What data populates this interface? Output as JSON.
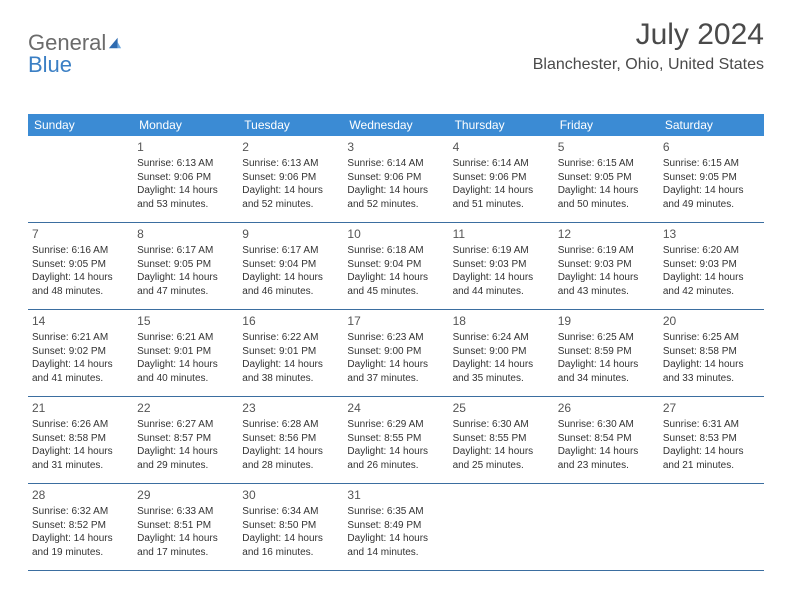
{
  "brand": {
    "general": "General",
    "blue": "Blue"
  },
  "title": "July 2024",
  "location": "Blanchester, Ohio, United States",
  "colors": {
    "header_bg": "#3b8bd4",
    "header_text": "#ffffff",
    "week_border": "#3b6ea0",
    "body_text": "#333333",
    "title_text": "#4a4a4a",
    "logo_gray": "#6b6b6b",
    "logo_blue": "#3b7fc4",
    "page_bg": "#ffffff"
  },
  "fonts": {
    "month_title_size": 30,
    "location_size": 16,
    "day_header_size": 12,
    "day_num_size": 12,
    "cell_text_size": 10
  },
  "dayNames": [
    "Sunday",
    "Monday",
    "Tuesday",
    "Wednesday",
    "Thursday",
    "Friday",
    "Saturday"
  ],
  "weeks": [
    [
      {
        "num": "",
        "lines": []
      },
      {
        "num": "1",
        "lines": [
          "Sunrise: 6:13 AM",
          "Sunset: 9:06 PM",
          "Daylight: 14 hours and 53 minutes."
        ]
      },
      {
        "num": "2",
        "lines": [
          "Sunrise: 6:13 AM",
          "Sunset: 9:06 PM",
          "Daylight: 14 hours and 52 minutes."
        ]
      },
      {
        "num": "3",
        "lines": [
          "Sunrise: 6:14 AM",
          "Sunset: 9:06 PM",
          "Daylight: 14 hours and 52 minutes."
        ]
      },
      {
        "num": "4",
        "lines": [
          "Sunrise: 6:14 AM",
          "Sunset: 9:06 PM",
          "Daylight: 14 hours and 51 minutes."
        ]
      },
      {
        "num": "5",
        "lines": [
          "Sunrise: 6:15 AM",
          "Sunset: 9:05 PM",
          "Daylight: 14 hours and 50 minutes."
        ]
      },
      {
        "num": "6",
        "lines": [
          "Sunrise: 6:15 AM",
          "Sunset: 9:05 PM",
          "Daylight: 14 hours and 49 minutes."
        ]
      }
    ],
    [
      {
        "num": "7",
        "lines": [
          "Sunrise: 6:16 AM",
          "Sunset: 9:05 PM",
          "Daylight: 14 hours and 48 minutes."
        ]
      },
      {
        "num": "8",
        "lines": [
          "Sunrise: 6:17 AM",
          "Sunset: 9:05 PM",
          "Daylight: 14 hours and 47 minutes."
        ]
      },
      {
        "num": "9",
        "lines": [
          "Sunrise: 6:17 AM",
          "Sunset: 9:04 PM",
          "Daylight: 14 hours and 46 minutes."
        ]
      },
      {
        "num": "10",
        "lines": [
          "Sunrise: 6:18 AM",
          "Sunset: 9:04 PM",
          "Daylight: 14 hours and 45 minutes."
        ]
      },
      {
        "num": "11",
        "lines": [
          "Sunrise: 6:19 AM",
          "Sunset: 9:03 PM",
          "Daylight: 14 hours and 44 minutes."
        ]
      },
      {
        "num": "12",
        "lines": [
          "Sunrise: 6:19 AM",
          "Sunset: 9:03 PM",
          "Daylight: 14 hours and 43 minutes."
        ]
      },
      {
        "num": "13",
        "lines": [
          "Sunrise: 6:20 AM",
          "Sunset: 9:03 PM",
          "Daylight: 14 hours and 42 minutes."
        ]
      }
    ],
    [
      {
        "num": "14",
        "lines": [
          "Sunrise: 6:21 AM",
          "Sunset: 9:02 PM",
          "Daylight: 14 hours and 41 minutes."
        ]
      },
      {
        "num": "15",
        "lines": [
          "Sunrise: 6:21 AM",
          "Sunset: 9:01 PM",
          "Daylight: 14 hours and 40 minutes."
        ]
      },
      {
        "num": "16",
        "lines": [
          "Sunrise: 6:22 AM",
          "Sunset: 9:01 PM",
          "Daylight: 14 hours and 38 minutes."
        ]
      },
      {
        "num": "17",
        "lines": [
          "Sunrise: 6:23 AM",
          "Sunset: 9:00 PM",
          "Daylight: 14 hours and 37 minutes."
        ]
      },
      {
        "num": "18",
        "lines": [
          "Sunrise: 6:24 AM",
          "Sunset: 9:00 PM",
          "Daylight: 14 hours and 35 minutes."
        ]
      },
      {
        "num": "19",
        "lines": [
          "Sunrise: 6:25 AM",
          "Sunset: 8:59 PM",
          "Daylight: 14 hours and 34 minutes."
        ]
      },
      {
        "num": "20",
        "lines": [
          "Sunrise: 6:25 AM",
          "Sunset: 8:58 PM",
          "Daylight: 14 hours and 33 minutes."
        ]
      }
    ],
    [
      {
        "num": "21",
        "lines": [
          "Sunrise: 6:26 AM",
          "Sunset: 8:58 PM",
          "Daylight: 14 hours and 31 minutes."
        ]
      },
      {
        "num": "22",
        "lines": [
          "Sunrise: 6:27 AM",
          "Sunset: 8:57 PM",
          "Daylight: 14 hours and 29 minutes."
        ]
      },
      {
        "num": "23",
        "lines": [
          "Sunrise: 6:28 AM",
          "Sunset: 8:56 PM",
          "Daylight: 14 hours and 28 minutes."
        ]
      },
      {
        "num": "24",
        "lines": [
          "Sunrise: 6:29 AM",
          "Sunset: 8:55 PM",
          "Daylight: 14 hours and 26 minutes."
        ]
      },
      {
        "num": "25",
        "lines": [
          "Sunrise: 6:30 AM",
          "Sunset: 8:55 PM",
          "Daylight: 14 hours and 25 minutes."
        ]
      },
      {
        "num": "26",
        "lines": [
          "Sunrise: 6:30 AM",
          "Sunset: 8:54 PM",
          "Daylight: 14 hours and 23 minutes."
        ]
      },
      {
        "num": "27",
        "lines": [
          "Sunrise: 6:31 AM",
          "Sunset: 8:53 PM",
          "Daylight: 14 hours and 21 minutes."
        ]
      }
    ],
    [
      {
        "num": "28",
        "lines": [
          "Sunrise: 6:32 AM",
          "Sunset: 8:52 PM",
          "Daylight: 14 hours and 19 minutes."
        ]
      },
      {
        "num": "29",
        "lines": [
          "Sunrise: 6:33 AM",
          "Sunset: 8:51 PM",
          "Daylight: 14 hours and 17 minutes."
        ]
      },
      {
        "num": "30",
        "lines": [
          "Sunrise: 6:34 AM",
          "Sunset: 8:50 PM",
          "Daylight: 14 hours and 16 minutes."
        ]
      },
      {
        "num": "31",
        "lines": [
          "Sunrise: 6:35 AM",
          "Sunset: 8:49 PM",
          "Daylight: 14 hours and 14 minutes."
        ]
      },
      {
        "num": "",
        "lines": []
      },
      {
        "num": "",
        "lines": []
      },
      {
        "num": "",
        "lines": []
      }
    ]
  ]
}
